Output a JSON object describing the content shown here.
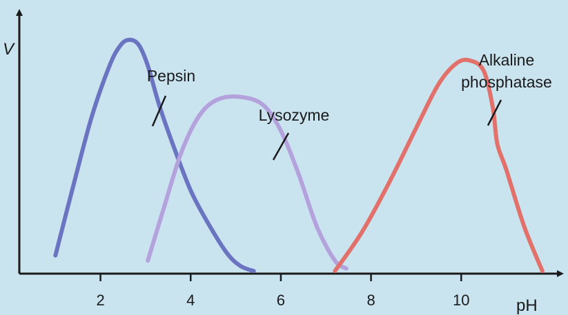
{
  "chart_data": {
    "type": "line",
    "title": "",
    "xlabel": "pH",
    "ylabel": "V",
    "xlim": [
      0.2,
      12.2
    ],
    "ylim": [
      0,
      1
    ],
    "xticks": [
      2,
      4,
      6,
      8,
      10
    ],
    "grid": false,
    "legend": "none",
    "series": [
      {
        "name": "Pepsin",
        "color": "#6b74c0",
        "x": [
          1.0,
          1.4,
          1.8,
          2.2,
          2.45,
          2.65,
          2.85,
          3.05,
          3.3,
          3.6,
          4.0,
          4.4,
          4.8,
          5.1,
          5.4
        ],
        "y": [
          0.07,
          0.34,
          0.6,
          0.8,
          0.88,
          0.9,
          0.88,
          0.8,
          0.65,
          0.5,
          0.32,
          0.19,
          0.08,
          0.03,
          0.01
        ]
      },
      {
        "name": "Lysozyme",
        "color": "#b4a2dc",
        "x": [
          3.05,
          3.4,
          3.8,
          4.2,
          4.6,
          5.1,
          5.6,
          6.0,
          6.4,
          6.8,
          7.2,
          7.45
        ],
        "y": [
          0.05,
          0.25,
          0.47,
          0.61,
          0.67,
          0.68,
          0.65,
          0.55,
          0.38,
          0.18,
          0.05,
          0.02
        ]
      },
      {
        "name": "Alkaline phosphatase",
        "color": "#e2706b",
        "x": [
          7.2,
          7.8,
          8.4,
          9.0,
          9.5,
          9.9,
          10.2,
          10.5,
          10.7,
          10.8,
          11.0,
          11.4,
          11.8
        ],
        "y": [
          0.01,
          0.16,
          0.35,
          0.56,
          0.73,
          0.81,
          0.82,
          0.78,
          0.64,
          0.5,
          0.4,
          0.18,
          0.01
        ]
      }
    ],
    "annotations": [
      {
        "text": "Pepsin",
        "points_to": "Pepsin"
      },
      {
        "text": "Lysozyme",
        "points_to": "Lysozyme"
      },
      {
        "text": [
          "Alkaline",
          "phosphatase"
        ],
        "points_to": "Alkaline phosphatase"
      }
    ]
  }
}
